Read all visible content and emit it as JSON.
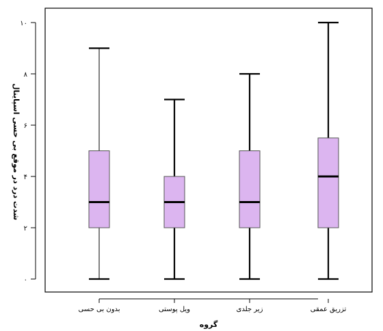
{
  "chart_data": {
    "type": "boxplot",
    "title": "",
    "xlabel": "گروه",
    "ylabel": "شدت درد در موقع بی حسی اسپاینال",
    "categories": [
      "بدون بی حسی",
      "ویل پوستی",
      "زیر جلدی",
      "تزریق عمقی"
    ],
    "y_tick_values": [
      0,
      2,
      4,
      6,
      8,
      10
    ],
    "y_tick_labels": [
      "۰",
      "۲",
      "۴",
      "۶",
      "۸",
      "۱۰"
    ],
    "ylim": [
      0,
      10
    ],
    "series": [
      {
        "category": "بدون بی حسی",
        "min": 0,
        "q1": 2,
        "median": 3,
        "q3": 5,
        "max": 9,
        "whisker_style": "thin"
      },
      {
        "category": "ویل پوستی",
        "min": 0,
        "q1": 2,
        "median": 3,
        "q3": 4,
        "max": 7,
        "whisker_style": "thick"
      },
      {
        "category": "زیر جلدی",
        "min": 0,
        "q1": 2,
        "median": 3,
        "q3": 5,
        "max": 8,
        "whisker_style": "thick"
      },
      {
        "category": "تزریق عمقی",
        "min": 0,
        "q1": 2,
        "median": 4,
        "q3": 5.5,
        "max": 10,
        "whisker_style": "thick"
      }
    ],
    "box_color": "#dcb5f0",
    "box_border_color": "#555555",
    "grid": false
  }
}
